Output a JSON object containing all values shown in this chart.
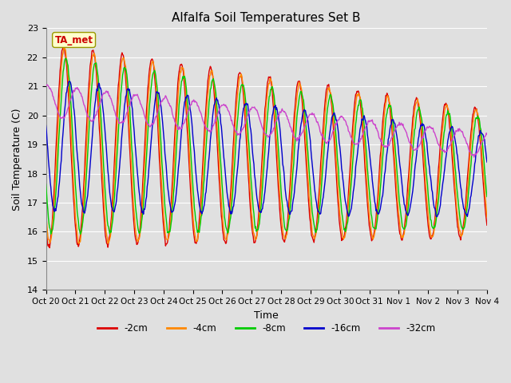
{
  "title": "Alfalfa Soil Temperatures Set B",
  "xlabel": "Time",
  "ylabel": "Soil Temperature (C)",
  "ylim": [
    14.0,
    23.0
  ],
  "yticks": [
    14.0,
    15.0,
    16.0,
    17.0,
    18.0,
    19.0,
    20.0,
    21.0,
    22.0,
    23.0
  ],
  "xtick_labels": [
    "Oct 20",
    "Oct 21",
    "Oct 22",
    "Oct 23",
    "Oct 24",
    "Oct 25",
    "Oct 26",
    "Oct 27",
    "Oct 28",
    "Oct 29",
    "Oct 30",
    "Oct 31",
    "Nov 1",
    "Nov 2",
    "Nov 3",
    "Nov 4"
  ],
  "annotation_text": "TA_met",
  "annotation_color": "#cc0000",
  "annotation_bg": "#ffffcc",
  "colors": {
    "-2cm": "#dd0000",
    "-4cm": "#ff8800",
    "-8cm": "#00cc00",
    "-16cm": "#0000cc",
    "-32cm": "#cc44cc"
  },
  "background_color": "#e0e0e0",
  "grid_color": "#ffffff",
  "n_days": 15,
  "pts_per_day": 48
}
